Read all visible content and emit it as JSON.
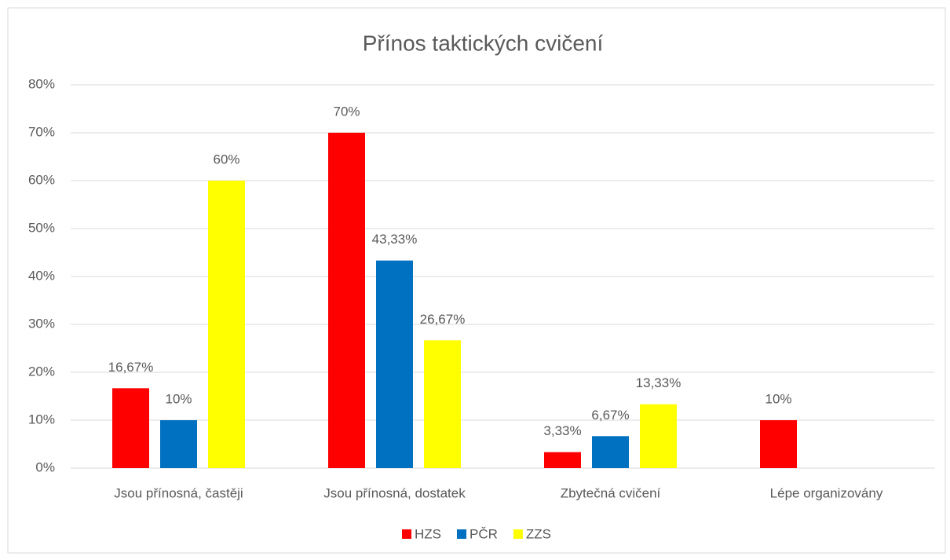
{
  "chart_data": {
    "type": "bar",
    "title": "Přínos taktických cvičení",
    "categories": [
      "Jsou přínosná, častěji",
      "Jsou přínosná, dostatek",
      "Zbytečná cvičení",
      "Lépe organizovány"
    ],
    "series": [
      {
        "name": "HZS",
        "color": "#ff0000",
        "values": [
          16.67,
          70,
          3.33,
          10
        ],
        "value_labels": [
          "16,67%",
          "70%",
          "3,33%",
          "10%"
        ]
      },
      {
        "name": "PČR",
        "color": "#0070c0",
        "values": [
          10,
          43.33,
          6.67,
          null
        ],
        "value_labels": [
          "10%",
          "43,33%",
          "6,67%",
          null
        ]
      },
      {
        "name": "ZZS",
        "color": "#ffff00",
        "values": [
          60,
          26.67,
          13.33,
          null
        ],
        "value_labels": [
          "60%",
          "26,67%",
          "13,33%",
          null
        ]
      }
    ],
    "ylim": [
      0,
      80
    ],
    "yticks": [
      {
        "value": 0,
        "label": "0%"
      },
      {
        "value": 10,
        "label": "10%"
      },
      {
        "value": 20,
        "label": "20%"
      },
      {
        "value": 30,
        "label": "30%"
      },
      {
        "value": 40,
        "label": "40%"
      },
      {
        "value": 50,
        "label": "50%"
      },
      {
        "value": 60,
        "label": "60%"
      },
      {
        "value": 70,
        "label": "70%"
      },
      {
        "value": 80,
        "label": "80%"
      }
    ],
    "grid": true,
    "legend": "bottom"
  }
}
